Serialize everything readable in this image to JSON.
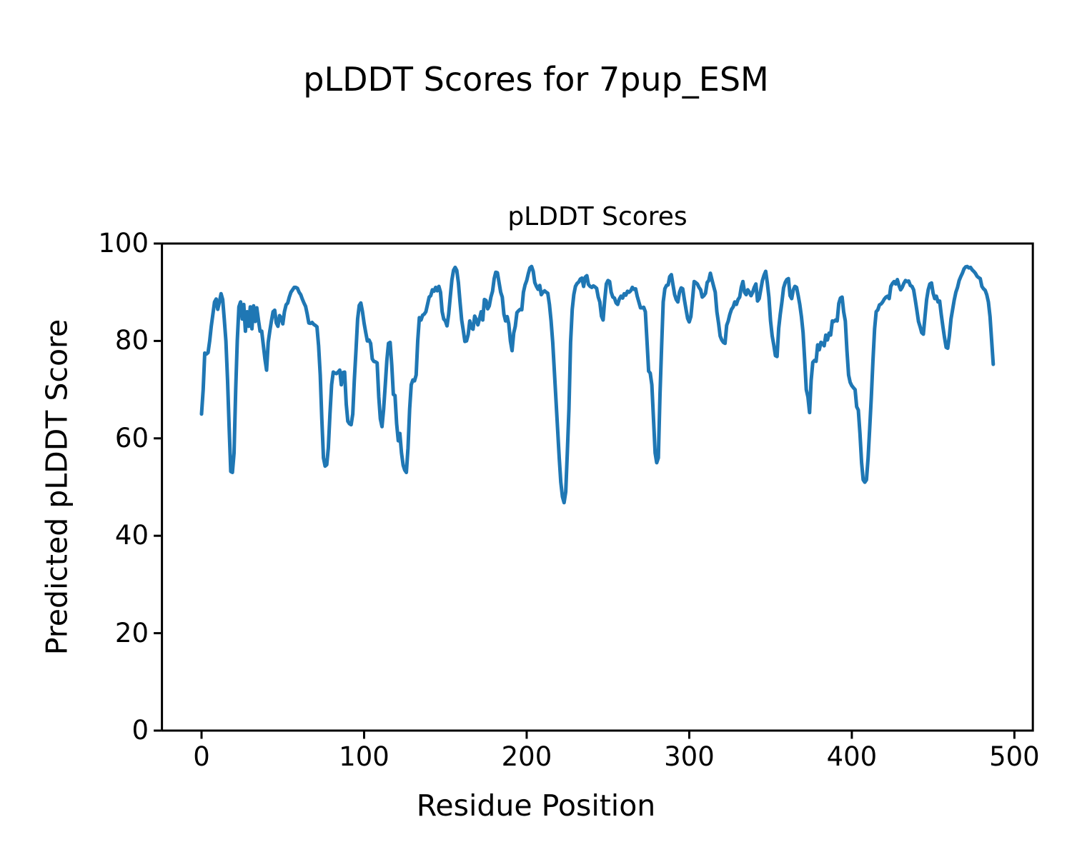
{
  "figure": {
    "suptitle": "pLDDT Scores for 7pup_ESM",
    "axes_title": "pLDDT Scores",
    "xlabel": "Residue Position",
    "ylabel": "Predicted pLDDT Score",
    "background_color": "#ffffff",
    "text_color": "#000000",
    "spine_color": "#000000",
    "line_color": "#1f77b4"
  },
  "chart_data": {
    "type": "line",
    "title": "pLDDT Scores",
    "suptitle": "pLDDT Scores for 7pup_ESM",
    "xlabel": "Residue Position",
    "ylabel": "Predicted pLDDT Score",
    "grid": false,
    "legend": null,
    "xlim": [
      -24.35,
      511.35
    ],
    "ylim": [
      0,
      100
    ],
    "xticks": [
      0,
      100,
      200,
      300,
      400,
      500
    ],
    "yticks": [
      0,
      20,
      40,
      60,
      80,
      100
    ],
    "x_start": 0,
    "x_step": 1,
    "series": [
      {
        "name": "pLDDT",
        "color": "#1f77b4",
        "values": [
          65,
          70,
          77.5,
          77.3,
          77.6,
          80,
          83,
          85.5,
          88,
          88.6,
          86.5,
          88,
          89.7,
          88.5,
          84.5,
          80,
          72,
          62,
          53.2,
          53,
          57,
          70,
          80,
          87,
          88,
          84.5,
          87.5,
          82,
          86,
          83,
          87,
          82.5,
          87.2,
          84,
          86.8,
          84.3,
          82,
          82,
          79.2,
          76.3,
          74,
          79.7,
          82,
          84.1,
          86,
          86.3,
          83.7,
          83,
          85.2,
          84.7,
          83.5,
          86,
          87.4,
          87.8,
          89,
          90,
          90.5,
          91,
          91,
          90.8,
          90,
          89.5,
          88.6,
          87.8,
          87.1,
          85.5,
          83.7,
          83.6,
          83.8,
          83.4,
          83.2,
          82.9,
          79,
          73,
          64,
          56,
          54.3,
          54.6,
          58,
          65,
          71,
          73.6,
          73.4,
          73.3,
          73.6,
          74,
          71,
          73.5,
          73.6,
          67,
          63.5,
          63,
          62.8,
          65,
          72,
          78,
          84.5,
          87.3,
          87.8,
          86,
          83.6,
          81.7,
          80,
          80.2,
          79.5,
          76.3,
          75.8,
          75.7,
          75.5,
          68.5,
          64,
          62.4,
          66,
          71,
          76,
          79.5,
          79.7,
          75,
          69,
          68.8,
          63,
          59.5,
          61,
          57,
          54.5,
          53.5,
          53,
          58,
          66,
          71,
          72,
          71.8,
          73,
          80,
          84.8,
          84.3,
          85.3,
          85.5,
          86,
          87.5,
          89,
          89.3,
          90.5,
          90.2,
          91,
          90.3,
          91.2,
          90,
          86,
          84.5,
          84.1,
          83.1,
          85.5,
          89,
          92.5,
          94.5,
          95.1,
          94.5,
          92,
          88,
          84.3,
          82.2,
          79.9,
          80,
          81.3,
          84.1,
          82.7,
          82.4,
          85.1,
          84.4,
          83.3,
          84.6,
          86,
          84.3,
          88.5,
          88.3,
          86.6,
          87.2,
          89,
          90.2,
          92.8,
          94.1,
          94,
          92,
          90,
          89,
          85.5,
          84.1,
          85,
          83.5,
          80,
          78,
          81.6,
          83,
          85.8,
          86.2,
          86.5,
          86.4,
          90,
          91.5,
          92.4,
          93.8,
          95,
          95.3,
          94.3,
          92,
          91.2,
          90.6,
          91.4,
          89.5,
          90,
          90.3,
          90,
          89.8,
          87.5,
          84.1,
          79.7,
          74,
          68,
          62,
          56,
          51,
          48,
          46.8,
          49,
          57,
          66,
          79.7,
          86.5,
          89.5,
          91.2,
          91.8,
          92.1,
          92.7,
          92.9,
          91.2,
          93.1,
          93.4,
          91.6,
          91.2,
          91,
          91.3,
          91.1,
          90.8,
          89,
          88,
          85.1,
          84.3,
          88.5,
          91.7,
          92.4,
          92.2,
          90,
          89,
          88.8,
          87.8,
          87.5,
          88.6,
          89.2,
          88.8,
          89.7,
          89.4,
          90.2,
          90,
          90.3,
          91,
          90.6,
          90.7,
          89.2,
          88,
          86.8,
          86.8,
          86.9,
          86,
          80,
          73.8,
          73.4,
          71,
          64,
          57,
          55,
          56,
          69,
          79,
          88,
          90.7,
          91.4,
          91.5,
          93.2,
          93.6,
          91.5,
          89.5,
          88.5,
          88,
          90,
          90.9,
          90.7,
          88.5,
          86.5,
          84.6,
          83.9,
          85,
          88.5,
          92.2,
          92,
          91.7,
          91,
          90.5,
          89,
          89.3,
          89.8,
          92,
          92.4,
          93.9,
          92.5,
          91.2,
          90,
          86,
          83.7,
          81,
          80.2,
          79.7,
          79.5,
          83.2,
          84.1,
          85.5,
          86.5,
          87,
          88,
          87.5,
          88.5,
          89,
          91,
          92.2,
          90,
          89.5,
          90.5,
          90,
          89.3,
          90,
          91,
          91.7,
          88.2,
          88.7,
          90.5,
          92.4,
          93.5,
          94.3,
          92,
          89,
          84.1,
          81,
          79.2,
          77,
          76.8,
          82.6,
          85.5,
          88,
          90.9,
          92,
          92.6,
          92.8,
          89.3,
          88.7,
          90.5,
          91.2,
          91,
          89.3,
          87.5,
          85,
          81.7,
          76,
          70,
          68.5,
          65.3,
          71.9,
          75.6,
          76,
          75.8,
          79.2,
          78.2,
          79.7,
          79.5,
          79,
          81.2,
          80.2,
          81.6,
          81.2,
          84.1,
          84,
          84.3,
          84.1,
          87.7,
          88.8,
          89,
          86,
          84.1,
          78,
          73,
          71.5,
          70.8,
          70.4,
          70,
          66.5,
          65.8,
          61,
          55,
          51.5,
          51,
          51.5,
          56,
          62,
          68.5,
          76,
          82.5,
          86,
          86.4,
          87.4,
          87.6,
          88,
          88.6,
          89,
          89.2,
          88.7,
          91.2,
          91.8,
          92.2,
          91.7,
          92.6,
          91.4,
          90.5,
          91,
          91.8,
          92.4,
          92.2,
          92.3,
          91.4,
          91.2,
          90.5,
          88.5,
          86.3,
          84,
          82.9,
          81.7,
          81.4,
          85,
          88.5,
          90.5,
          91.7,
          91.9,
          89.8,
          88.7,
          89.2,
          88,
          88.2,
          85.5,
          83,
          80.7,
          78.7,
          78.5,
          81,
          84.5,
          86.5,
          88.4,
          90,
          91,
          92.4,
          93.2,
          93.9,
          94.8,
          95.2,
          95.3,
          95,
          95.1,
          94.6,
          94.3,
          93.9,
          93.3,
          93,
          92.8,
          91.2,
          90.7,
          90.4,
          89.5,
          88,
          85,
          80,
          75.2
        ]
      }
    ]
  }
}
